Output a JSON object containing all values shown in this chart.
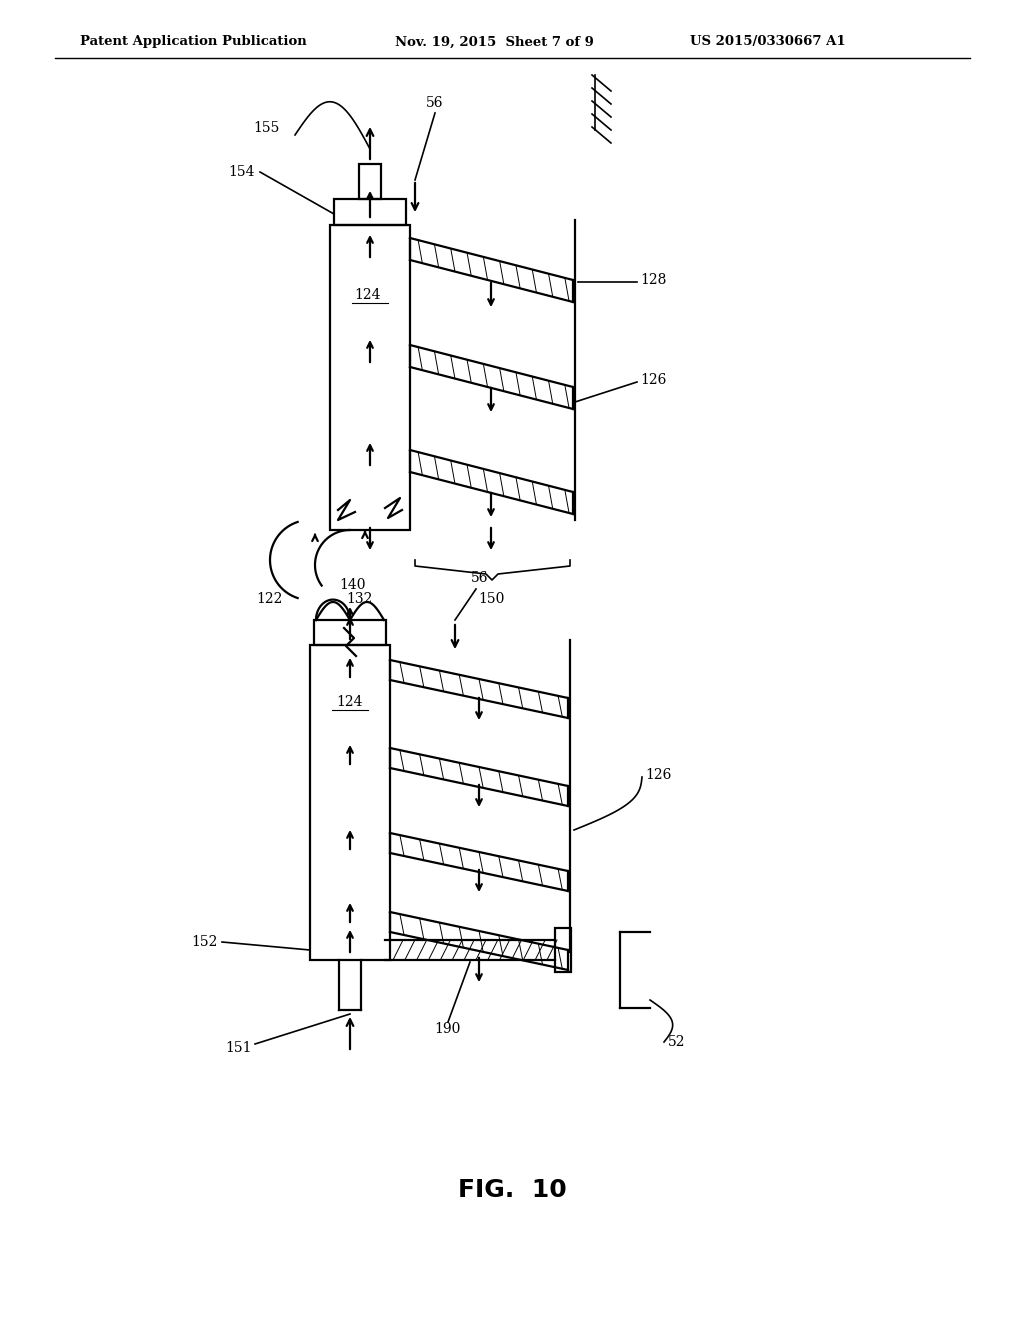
{
  "bg_color": "#ffffff",
  "header_left": "Patent Application Publication",
  "header_mid": "Nov. 19, 2015  Sheet 7 of 9",
  "header_right": "US 2015/0330667 A1",
  "fig_label": "FIG.  10"
}
